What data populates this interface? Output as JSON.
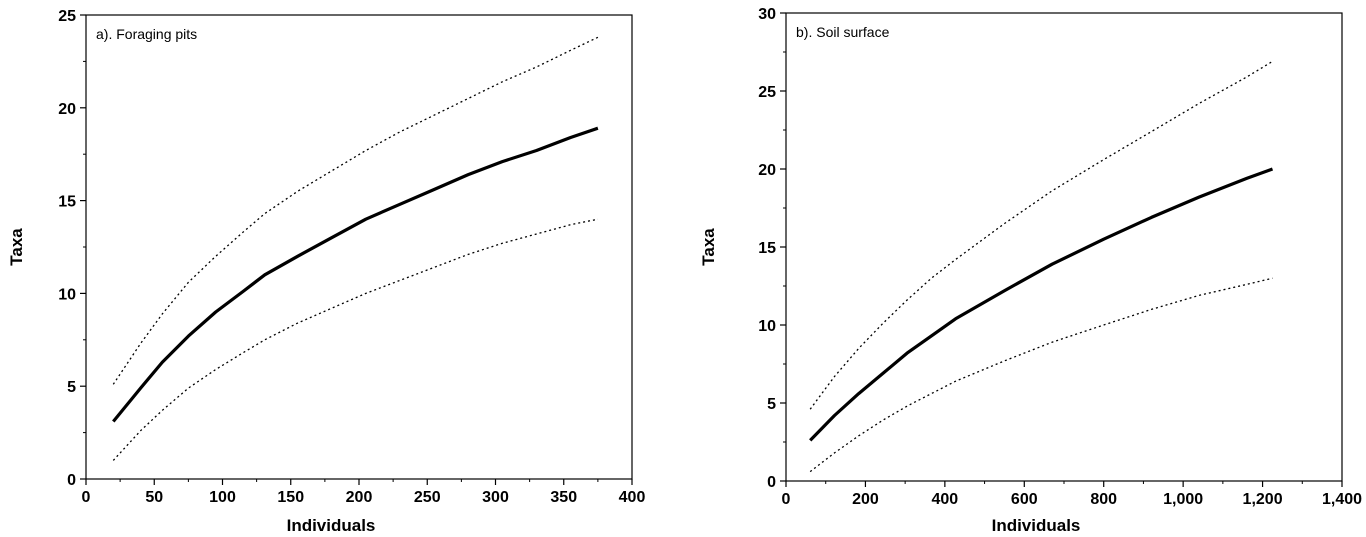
{
  "chart_data": [
    {
      "type": "line",
      "title": "a). Foraging pits",
      "xlabel": "Individuals",
      "ylabel": "Taxa",
      "xlim": [
        0,
        400
      ],
      "ylim": [
        0,
        25
      ],
      "xticks": [
        0,
        50,
        100,
        150,
        200,
        250,
        300,
        350,
        400
      ],
      "xtick_labels": [
        "0",
        "50",
        "100",
        "150",
        "200",
        "250",
        "300",
        "350",
        "400"
      ],
      "yticks": [
        0,
        5,
        10,
        15,
        20,
        25
      ],
      "ytick_labels": [
        "0",
        "5",
        "10",
        "15",
        "20",
        "25"
      ],
      "grid": false,
      "series": [
        {
          "style": "solid",
          "x": [
            20,
            40,
            56,
            75,
            95,
            115,
            131,
            155,
            180,
            205,
            230,
            255,
            280,
            305,
            330,
            355,
            375
          ],
          "y": [
            3.1,
            4.9,
            6.3,
            7.7,
            9.0,
            10.1,
            11.0,
            12.0,
            13.0,
            14.0,
            14.8,
            15.6,
            16.4,
            17.1,
            17.7,
            18.4,
            18.9
          ]
        },
        {
          "style": "dotted",
          "x": [
            20,
            40,
            56,
            75,
            95,
            115,
            131,
            155,
            180,
            205,
            230,
            255,
            280,
            305,
            330,
            355,
            375
          ],
          "y": [
            5.1,
            7.3,
            8.9,
            10.6,
            12.0,
            13.3,
            14.3,
            15.5,
            16.6,
            17.7,
            18.7,
            19.6,
            20.5,
            21.4,
            22.2,
            23.1,
            23.8
          ]
        },
        {
          "style": "dotted",
          "x": [
            20,
            40,
            56,
            75,
            95,
            115,
            131,
            155,
            180,
            205,
            230,
            255,
            280,
            305,
            330,
            355,
            375
          ],
          "y": [
            1.0,
            2.6,
            3.7,
            4.9,
            5.9,
            6.8,
            7.5,
            8.4,
            9.2,
            10.0,
            10.7,
            11.4,
            12.1,
            12.7,
            13.2,
            13.7,
            14.0
          ]
        }
      ]
    },
    {
      "type": "line",
      "title": "b). Soil surface",
      "xlabel": "Individuals",
      "ylabel": "Taxa",
      "xlim": [
        0,
        1400
      ],
      "ylim": [
        0,
        30
      ],
      "xticks": [
        0,
        200,
        400,
        600,
        800,
        1000,
        1200,
        1400
      ],
      "xtick_labels": [
        "0",
        "200",
        "400",
        "600",
        "800",
        "1,000",
        "1,200",
        "1,400"
      ],
      "yticks": [
        0,
        5,
        10,
        15,
        20,
        25,
        30
      ],
      "ytick_labels": [
        "0",
        "5",
        "10",
        "15",
        "20",
        "25",
        "30"
      ],
      "grid": false,
      "series": [
        {
          "style": "solid",
          "x": [
            61,
            122,
            183,
            244,
            305,
            366,
            427,
            550,
            670,
            800,
            920,
            1040,
            1160,
            1225
          ],
          "y": [
            2.6,
            4.2,
            5.6,
            6.9,
            8.2,
            9.3,
            10.4,
            12.2,
            13.9,
            15.5,
            16.9,
            18.2,
            19.4,
            20.0
          ]
        },
        {
          "style": "dotted",
          "x": [
            61,
            122,
            183,
            244,
            305,
            366,
            427,
            550,
            670,
            800,
            920,
            1040,
            1160,
            1225
          ],
          "y": [
            4.6,
            6.7,
            8.5,
            10.1,
            11.6,
            13.0,
            14.2,
            16.5,
            18.6,
            20.6,
            22.4,
            24.2,
            25.9,
            26.9
          ]
        },
        {
          "style": "dotted",
          "x": [
            61,
            122,
            183,
            244,
            305,
            366,
            427,
            550,
            670,
            800,
            920,
            1040,
            1160,
            1225
          ],
          "y": [
            0.6,
            1.8,
            2.9,
            3.9,
            4.8,
            5.6,
            6.4,
            7.7,
            8.9,
            10.0,
            11.0,
            11.9,
            12.6,
            13.0
          ]
        }
      ]
    }
  ]
}
